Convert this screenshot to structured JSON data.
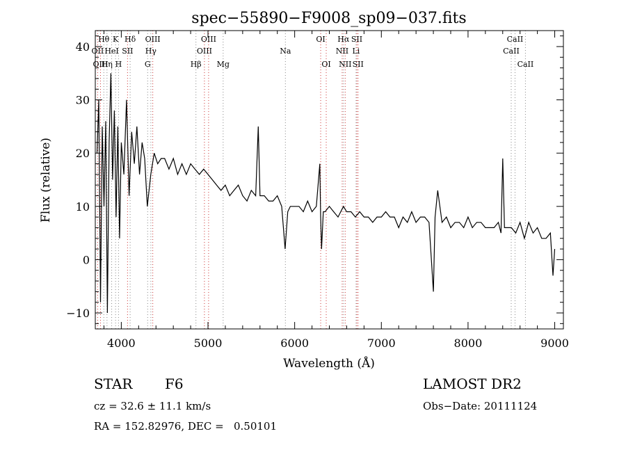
{
  "chart_data": {
    "type": "line",
    "title": "spec−55890−F9008_sp09−037.fits",
    "xlabel": "Wavelength (Å)",
    "ylabel": "Flux (relative)",
    "xlim": [
      3700,
      9100
    ],
    "ylim": [
      -13,
      43
    ],
    "xticks": [
      4000,
      5000,
      6000,
      7000,
      8000,
      9000
    ],
    "xtick_labels": [
      "4000",
      "5000",
      "6000",
      "7000",
      "8000",
      "9000"
    ],
    "yticks": [
      -10,
      0,
      10,
      20,
      30,
      40
    ],
    "ytick_labels": [
      "−10",
      "0",
      "10",
      "20",
      "30",
      "40"
    ],
    "series": [
      {
        "name": "flux",
        "x": [
          3720,
          3740,
          3760,
          3780,
          3800,
          3820,
          3840,
          3860,
          3880,
          3900,
          3920,
          3940,
          3960,
          3980,
          4000,
          4030,
          4060,
          4090,
          4120,
          4150,
          4180,
          4210,
          4240,
          4270,
          4300,
          4340,
          4380,
          4420,
          4460,
          4500,
          4550,
          4600,
          4650,
          4700,
          4750,
          4800,
          4850,
          4900,
          4950,
          5000,
          5050,
          5100,
          5150,
          5200,
          5250,
          5300,
          5350,
          5400,
          5450,
          5500,
          5550,
          5580,
          5600,
          5650,
          5700,
          5750,
          5800,
          5850,
          5890,
          5920,
          5950,
          6000,
          6050,
          6100,
          6150,
          6200,
          6250,
          6290,
          6300,
          6310,
          6330,
          6350,
          6400,
          6450,
          6500,
          6563,
          6600,
          6650,
          6700,
          6750,
          6800,
          6850,
          6900,
          6950,
          7000,
          7050,
          7100,
          7150,
          7200,
          7250,
          7300,
          7350,
          7400,
          7450,
          7500,
          7550,
          7600,
          7620,
          7650,
          7700,
          7750,
          7800,
          7850,
          7900,
          7950,
          8000,
          8050,
          8100,
          8150,
          8200,
          8250,
          8300,
          8350,
          8380,
          8400,
          8420,
          8450,
          8500,
          8550,
          8600,
          8650,
          8700,
          8750,
          8800,
          8850,
          8900,
          8950,
          8980,
          9000
        ],
        "y": [
          20,
          30,
          -8,
          25,
          10,
          26,
          -10,
          22,
          35,
          15,
          28,
          8,
          25,
          4,
          22,
          16,
          30,
          12,
          24,
          18,
          25,
          16,
          22,
          19,
          10,
          16,
          20,
          18,
          19,
          19,
          17,
          19,
          16,
          18,
          16,
          18,
          17,
          16,
          17,
          16,
          15,
          14,
          13,
          14,
          12,
          13,
          14,
          12,
          11,
          13,
          12,
          25,
          12,
          12,
          11,
          11,
          12,
          10,
          2,
          9,
          10,
          10,
          10,
          9,
          11,
          9,
          10,
          18,
          8,
          2,
          9,
          9,
          10,
          9,
          8,
          10,
          9,
          9,
          8,
          9,
          8,
          8,
          7,
          8,
          8,
          9,
          8,
          8,
          6,
          8,
          7,
          9,
          7,
          8,
          8,
          7,
          -6,
          8,
          13,
          7,
          8,
          6,
          7,
          7,
          6,
          8,
          6,
          7,
          7,
          6,
          6,
          6,
          7,
          5,
          19,
          6,
          6,
          6,
          5,
          7,
          4,
          7,
          5,
          6,
          4,
          4,
          5,
          -3,
          2
        ]
      }
    ],
    "spectral_lines": [
      {
        "label": "Hθ",
        "x": 3798,
        "row": 0,
        "color": "#888888"
      },
      {
        "label": "K",
        "x": 3934,
        "row": 0,
        "color": "#888888"
      },
      {
        "label": "Hδ",
        "x": 4102,
        "row": 0,
        "color": "#888888"
      },
      {
        "label": "OIII",
        "x": 4363,
        "row": 0,
        "color": "#cc3333"
      },
      {
        "label": "OIII",
        "x": 5007,
        "row": 0,
        "color": "#cc3333"
      },
      {
        "label": "OI",
        "x": 6300,
        "row": 0,
        "color": "#cc3333"
      },
      {
        "label": "Hα",
        "x": 6563,
        "row": 0,
        "color": "#888888"
      },
      {
        "label": "SII",
        "x": 6717,
        "row": 0,
        "color": "#cc3333"
      },
      {
        "label": "CaII",
        "x": 8542,
        "row": 0,
        "color": "#888888"
      },
      {
        "label": "OII",
        "x": 3727,
        "row": 1,
        "color": "#cc3333"
      },
      {
        "label": "HeI",
        "x": 3889,
        "row": 1,
        "color": "#888888"
      },
      {
        "label": "SII",
        "x": 4072,
        "row": 1,
        "color": "#cc3333"
      },
      {
        "label": "Hγ",
        "x": 4341,
        "row": 1,
        "color": "#888888"
      },
      {
        "label": "OIII",
        "x": 4959,
        "row": 1,
        "color": "#cc3333"
      },
      {
        "label": "Na",
        "x": 5893,
        "row": 1,
        "color": "#888888"
      },
      {
        "label": "NII",
        "x": 6548,
        "row": 1,
        "color": "#cc3333"
      },
      {
        "label": "Li",
        "x": 6708,
        "row": 1,
        "color": "#888888"
      },
      {
        "label": "CaII",
        "x": 8498,
        "row": 1,
        "color": "#888888"
      },
      {
        "label": "OIII",
        "x": 3760,
        "row": 2,
        "color": "#cc3333"
      },
      {
        "label": "Hη",
        "x": 3835,
        "row": 2,
        "color": "#888888"
      },
      {
        "label": "H",
        "x": 3968,
        "row": 2,
        "color": "#888888"
      },
      {
        "label": "G",
        "x": 4304,
        "row": 2,
        "color": "#888888"
      },
      {
        "label": "Hβ",
        "x": 4861,
        "row": 2,
        "color": "#888888"
      },
      {
        "label": "Mg",
        "x": 5175,
        "row": 2,
        "color": "#888888"
      },
      {
        "label": "OI",
        "x": 6364,
        "row": 2,
        "color": "#cc3333"
      },
      {
        "label": "NII",
        "x": 6583,
        "row": 2,
        "color": "#cc3333"
      },
      {
        "label": "SII",
        "x": 6731,
        "row": 2,
        "color": "#cc3333"
      },
      {
        "label": "CaII",
        "x": 8662,
        "row": 2,
        "color": "#888888"
      }
    ]
  },
  "footer": {
    "object_class": "STAR",
    "subclass": "F6",
    "survey": "LAMOST DR2",
    "redshift_text": "cz = 32.6 ± 11.1 km/s",
    "obs_date": "Obs−Date: 20111124",
    "coords": "RA = 152.82976, DEC =   0.50101"
  }
}
